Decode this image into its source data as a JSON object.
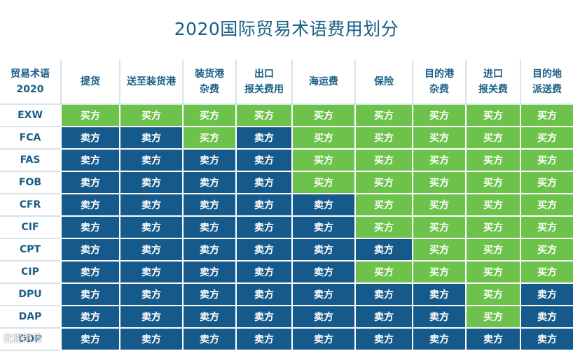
{
  "title": "2020国际贸易术语费用划分",
  "header": [
    "贸易术语\n2020",
    "提货",
    "送至装货港",
    "装货港\n杂费",
    "出口\n报关费用",
    "海运费",
    "保险",
    "目的港\n杂费",
    "进口\n报关费",
    "目的地\n派送费"
  ],
  "labels": {
    "buyer": "买方",
    "seller": "卖方"
  },
  "colors": {
    "buyer": "#6cc24a",
    "seller": "#155a8a",
    "title": "#1a5e86"
  },
  "rows": [
    {
      "term": "EXW",
      "cells": [
        "buyer",
        "buyer",
        "buyer",
        "buyer",
        "buyer",
        "buyer",
        "buyer",
        "buyer",
        "buyer"
      ]
    },
    {
      "term": "FCA",
      "cells": [
        "seller",
        "seller",
        "buyer",
        "seller",
        "buyer",
        "buyer",
        "buyer",
        "buyer",
        "buyer"
      ]
    },
    {
      "term": "FAS",
      "cells": [
        "seller",
        "seller",
        "seller",
        "seller",
        "buyer",
        "buyer",
        "buyer",
        "buyer",
        "buyer"
      ]
    },
    {
      "term": "FOB",
      "cells": [
        "seller",
        "seller",
        "seller",
        "seller",
        "buyer",
        "buyer",
        "buyer",
        "buyer",
        "buyer"
      ]
    },
    {
      "term": "CFR",
      "cells": [
        "seller",
        "seller",
        "seller",
        "seller",
        "seller",
        "buyer",
        "buyer",
        "buyer",
        "buyer"
      ]
    },
    {
      "term": "CIF",
      "cells": [
        "seller",
        "seller",
        "seller",
        "seller",
        "seller",
        "buyer",
        "buyer",
        "buyer",
        "buyer"
      ]
    },
    {
      "term": "CPT",
      "cells": [
        "seller",
        "seller",
        "seller",
        "seller",
        "seller",
        "seller",
        "buyer",
        "buyer",
        "buyer"
      ]
    },
    {
      "term": "CIP",
      "cells": [
        "seller",
        "seller",
        "seller",
        "seller",
        "seller",
        "buyer",
        "buyer",
        "buyer",
        "buyer"
      ]
    },
    {
      "term": "DPU",
      "cells": [
        "seller",
        "seller",
        "seller",
        "seller",
        "seller",
        "seller",
        "seller",
        "buyer",
        "seller"
      ]
    },
    {
      "term": "DAP",
      "cells": [
        "seller",
        "seller",
        "seller",
        "seller",
        "seller",
        "seller",
        "seller",
        "buyer",
        "seller"
      ]
    },
    {
      "term": "DDP",
      "cells": [
        "seller",
        "seller",
        "seller",
        "seller",
        "seller",
        "seller",
        "seller",
        "seller",
        "seller"
      ]
    }
  ],
  "watermark": "优骏跨境"
}
